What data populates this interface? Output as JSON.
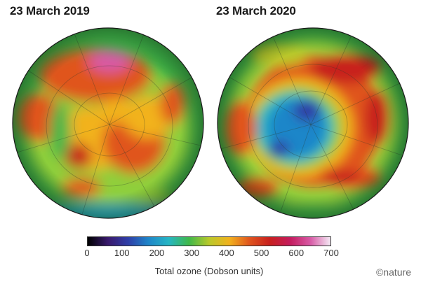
{
  "panels": [
    {
      "title": "23 March 2019"
    },
    {
      "title": "23 March 2020"
    }
  ],
  "colorbar": {
    "label": "Total ozone (Dobson units)",
    "min": 0,
    "max": 700,
    "ticks": [
      "0",
      "100",
      "200",
      "300",
      "400",
      "500",
      "600",
      "700"
    ],
    "stops": [
      "#000000",
      "#3a1a6e",
      "#2f3fa8",
      "#1f86c9",
      "#26b6c4",
      "#3fb84a",
      "#b9c92b",
      "#f2b21e",
      "#e0551e",
      "#c8201f",
      "#c41c5e",
      "#d85aa6",
      "#f5eaf5"
    ]
  },
  "credit": "©nature"
}
